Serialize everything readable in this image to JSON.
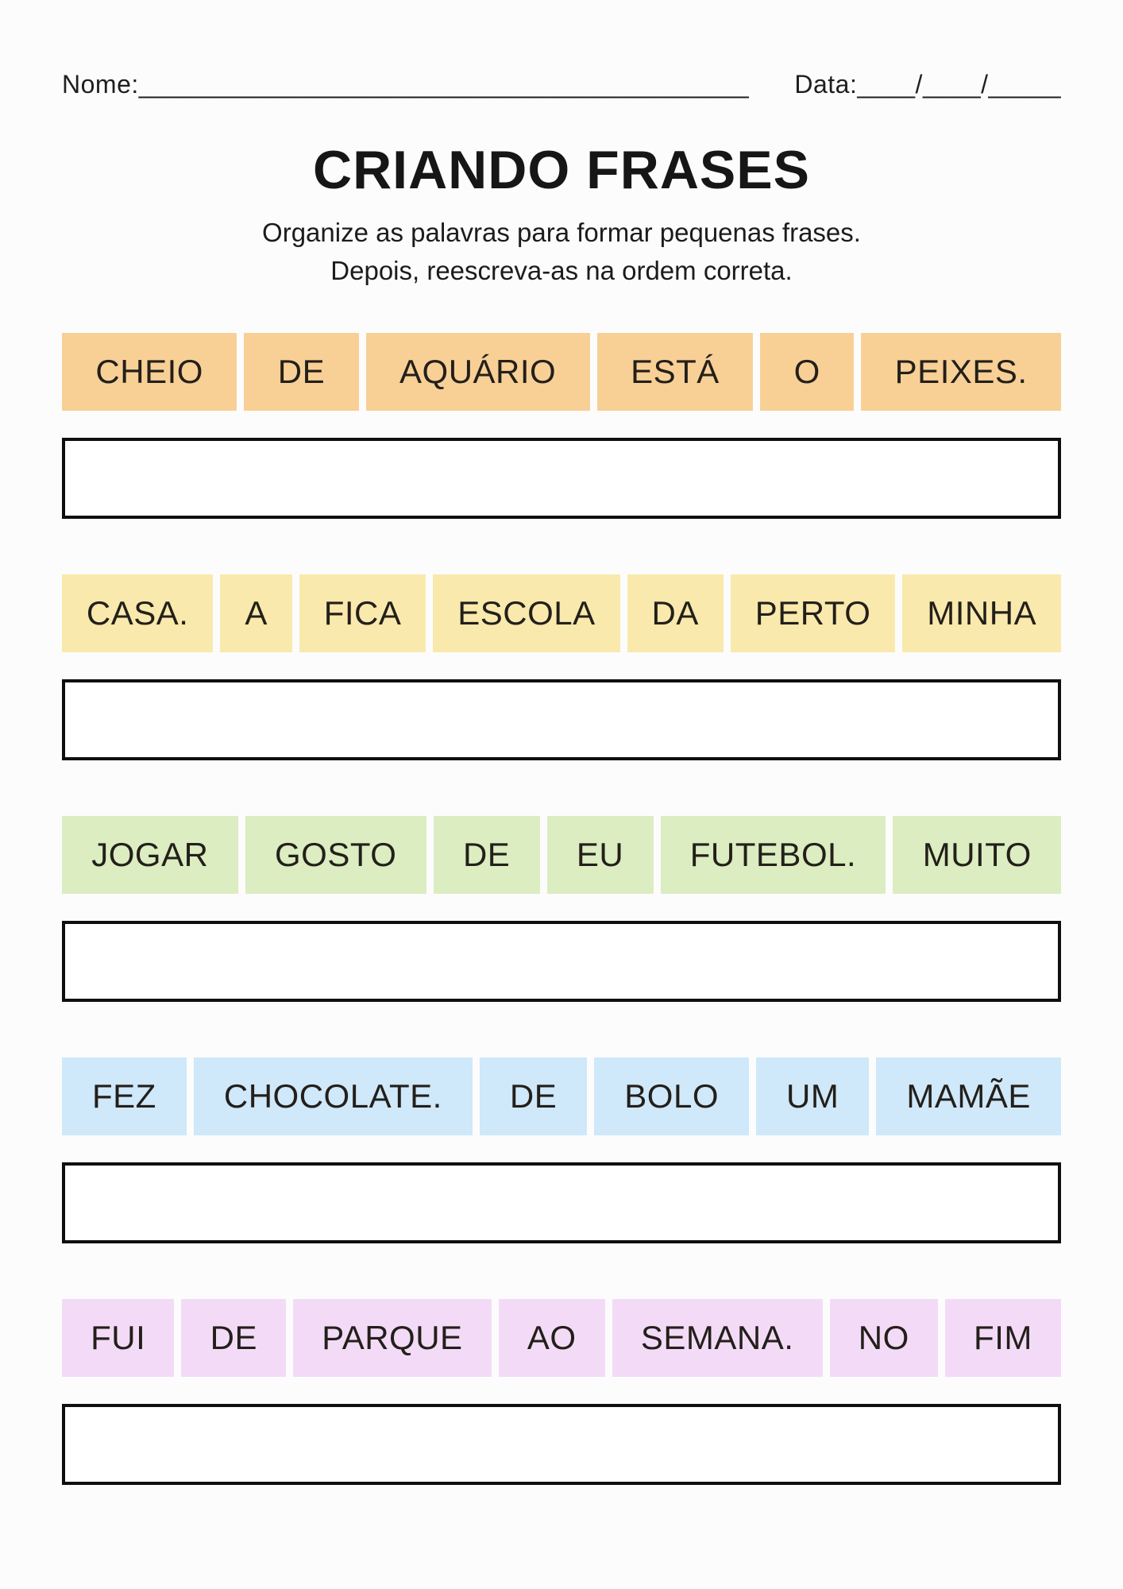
{
  "header": {
    "name_label": "Nome:",
    "name_line": "__________________________________________",
    "date_label": "Data:",
    "date_line": "____/____/_____"
  },
  "title": "CRIANDO FRASES",
  "instructions": {
    "line1": "Organize as palavras para formar pequenas frases.",
    "line2": "Depois, reescreva-as na ordem correta."
  },
  "tile_text_color": "#231f1a",
  "answer_box_border_color": "#0f0f0f",
  "exercises": [
    {
      "color": "#F8D096",
      "words": [
        "CHEIO",
        "DE",
        "AQUÁRIO",
        "ESTÁ",
        "O",
        "PEIXES."
      ]
    },
    {
      "color": "#F9E9AC",
      "words": [
        "CASA.",
        "A",
        "FICA",
        "ESCOLA",
        "DA",
        "PERTO",
        "MINHA"
      ]
    },
    {
      "color": "#DBEDC1",
      "words": [
        "JOGAR",
        "GOSTO",
        "DE",
        "EU",
        "FUTEBOL.",
        "MUITO"
      ]
    },
    {
      "color": "#CFE8FA",
      "words": [
        "FEZ",
        "CHOCOLATE.",
        "DE",
        "BOLO",
        "UM",
        "MAMÃE"
      ]
    },
    {
      "color": "#F3DBF7",
      "words": [
        "FUI",
        "DE",
        "PARQUE",
        "AO",
        "SEMANA.",
        "NO",
        "FIM"
      ]
    }
  ]
}
